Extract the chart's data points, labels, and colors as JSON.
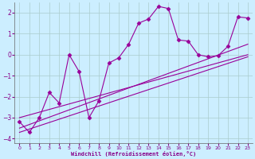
{
  "xlabel": "Windchill (Refroidissement éolien,°C)",
  "bg_color": "#cceeff",
  "grid_color": "#aacccc",
  "line_color": "#990099",
  "xlim": [
    -0.5,
    23.5
  ],
  "ylim": [
    -4.2,
    2.5
  ],
  "x_ticks": [
    0,
    1,
    2,
    3,
    4,
    5,
    6,
    7,
    8,
    9,
    10,
    11,
    12,
    13,
    14,
    15,
    16,
    17,
    18,
    19,
    20,
    21,
    22,
    23
  ],
  "y_ticks": [
    -4,
    -3,
    -2,
    -1,
    0,
    1,
    2
  ],
  "main_x": [
    0,
    1,
    2,
    3,
    4,
    5,
    6,
    7,
    8,
    9,
    10,
    11,
    12,
    13,
    14,
    15,
    16,
    17,
    18,
    19,
    20,
    21,
    22,
    23
  ],
  "main_y": [
    -3.2,
    -3.7,
    -3.0,
    -1.8,
    -2.3,
    0.0,
    -0.8,
    -3.0,
    -2.2,
    -0.4,
    -0.15,
    0.5,
    1.5,
    1.7,
    2.3,
    2.2,
    0.7,
    0.65,
    0.0,
    -0.1,
    -0.05,
    0.4,
    1.8,
    1.75
  ],
  "trend1_x": [
    0,
    23
  ],
  "trend1_y": [
    -3.5,
    0.5
  ],
  "trend2_x": [
    0,
    23
  ],
  "trend2_y": [
    -3.0,
    0.0
  ],
  "trend3_x": [
    0,
    23
  ],
  "trend3_y": [
    -3.7,
    -0.1
  ]
}
